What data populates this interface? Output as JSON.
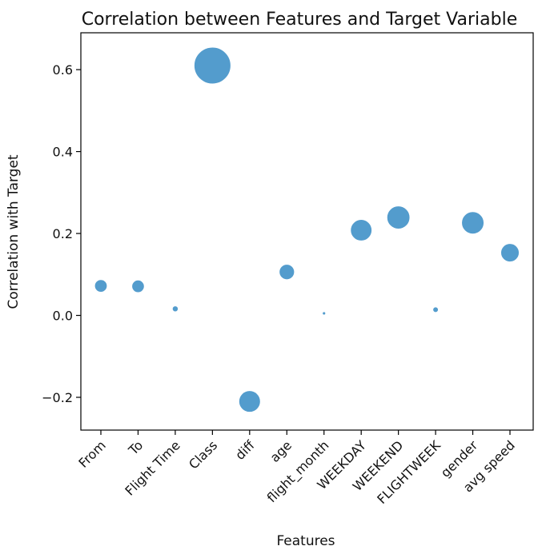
{
  "chart_data": {
    "type": "scatter",
    "title": "Correlation between Features and Target Variable",
    "xlabel": "Features",
    "ylabel": "Correlation with Target",
    "categories": [
      "From",
      "To",
      "Flight Time",
      "Class",
      "diff",
      "age",
      "flight_month",
      "WEEKDAY",
      "WEEKEND",
      "FLIGHTWEEK",
      "gender",
      "avg speed"
    ],
    "values": [
      0.072,
      0.071,
      0.016,
      0.61,
      -0.21,
      0.106,
      0.005,
      0.208,
      0.239,
      0.014,
      0.226,
      0.153
    ],
    "point_size_encodes": "absolute correlation",
    "ylim": [
      -0.28,
      0.69
    ],
    "yticks": [
      -0.2,
      0.0,
      0.2,
      0.4,
      0.6
    ],
    "ytick_labels": [
      "−0.2",
      "0.0",
      "0.2",
      "0.4",
      "0.6"
    ],
    "grid": false,
    "legend": "none",
    "point_color": "#3b8ec6"
  }
}
